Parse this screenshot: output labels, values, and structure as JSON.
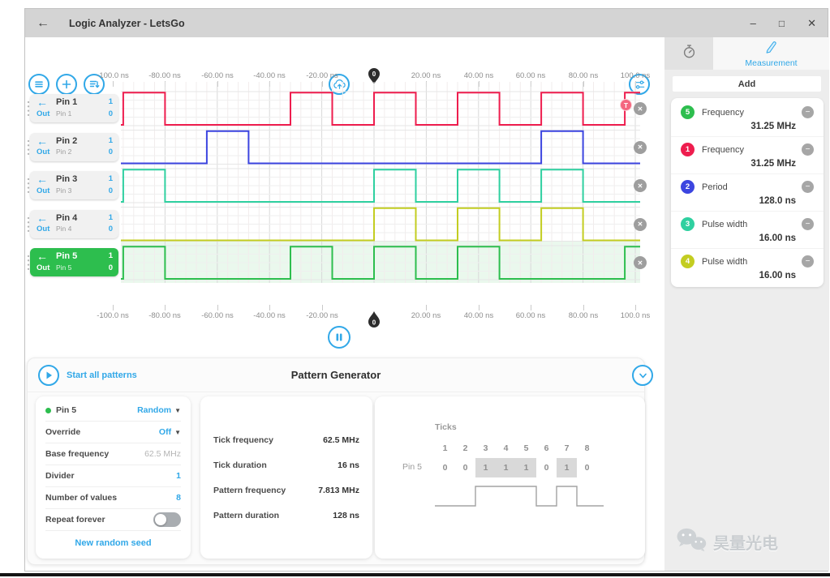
{
  "window": {
    "title": "Logic Analyzer - LetsGo",
    "back_icon": "←",
    "controls": {
      "minimize": "–",
      "maximize": "□",
      "close": "✕"
    }
  },
  "toolbar": {
    "buttons": [
      "menu",
      "add-channel",
      "sort-channels"
    ],
    "center_button": "cloud-upload",
    "right_button": "settings-sliders"
  },
  "timeline": {
    "unit": "ns",
    "marker_label": "0",
    "ticks": [
      {
        "t": -100,
        "label": "-100.0 ns"
      },
      {
        "t": -80,
        "label": "-80.00 ns"
      },
      {
        "t": -60,
        "label": "-60.00 ns"
      },
      {
        "t": -40,
        "label": "-40.00 ns"
      },
      {
        "t": -20,
        "label": "-20.00 ns"
      },
      {
        "t": 20,
        "label": "20.00 ns"
      },
      {
        "t": 40,
        "label": "40.00 ns"
      },
      {
        "t": 60,
        "label": "60.00 ns"
      },
      {
        "t": 80,
        "label": "80.00 ns"
      },
      {
        "t": 100,
        "label": "100.0 ns"
      }
    ]
  },
  "channels": [
    {
      "name": "Pin 1",
      "direction": "Out",
      "subtitle": "Pin 1",
      "high_label": "1",
      "low_label": "0",
      "color": "#ee1d4e",
      "selected": false,
      "trigger_badge": "T",
      "highs_ns": [
        [
          -96,
          -80
        ],
        [
          -32,
          -16
        ],
        [
          0,
          16
        ],
        [
          32,
          48
        ],
        [
          64,
          80
        ],
        [
          96,
          103
        ]
      ]
    },
    {
      "name": "Pin 2",
      "direction": "Out",
      "subtitle": "Pin 2",
      "high_label": "1",
      "low_label": "0",
      "color": "#3c45e0",
      "selected": false,
      "trigger_badge": "",
      "highs_ns": [
        [
          -64,
          -48
        ],
        [
          64,
          80
        ]
      ]
    },
    {
      "name": "Pin 3",
      "direction": "Out",
      "subtitle": "Pin 3",
      "high_label": "1",
      "low_label": "0",
      "color": "#2fd0a0",
      "selected": false,
      "trigger_badge": "",
      "highs_ns": [
        [
          -96,
          -80
        ],
        [
          0,
          16
        ],
        [
          32,
          48
        ],
        [
          64,
          80
        ]
      ]
    },
    {
      "name": "Pin 4",
      "direction": "Out",
      "subtitle": "Pin 4",
      "high_label": "1",
      "low_label": "0",
      "color": "#c3cd21",
      "selected": false,
      "trigger_badge": "",
      "highs_ns": [
        [
          0,
          16
        ],
        [
          32,
          48
        ],
        [
          64,
          80
        ]
      ]
    },
    {
      "name": "Pin 5",
      "direction": "Out",
      "subtitle": "Pin 5",
      "high_label": "1",
      "low_label": "0",
      "color": "#2dbe4e",
      "selected": true,
      "trigger_badge": "",
      "highs_ns": [
        [
          -96,
          -80
        ],
        [
          -32,
          -16
        ],
        [
          0,
          16
        ],
        [
          32,
          48
        ],
        [
          96,
          103
        ]
      ]
    }
  ],
  "measurement_panel": {
    "tabs": {
      "timing_icon": "stopwatch-icon",
      "measurement": "Measurement"
    },
    "add_button": "Add",
    "items": [
      {
        "badge": "5",
        "badge_color": "#2dbe4e",
        "label": "Frequency",
        "value": "31.25 MHz"
      },
      {
        "badge": "1",
        "badge_color": "#ee1d4e",
        "label": "Frequency",
        "value": "31.25 MHz"
      },
      {
        "badge": "2",
        "badge_color": "#3c45e0",
        "label": "Period",
        "value": "128.0 ns"
      },
      {
        "badge": "3",
        "badge_color": "#2fd0a0",
        "label": "Pulse width",
        "value": "16.00 ns"
      },
      {
        "badge": "4",
        "badge_color": "#c3cd21",
        "label": "Pulse width",
        "value": "16.00 ns"
      }
    ]
  },
  "pattern_generator": {
    "title": "Pattern Generator",
    "start_button": "Start all patterns",
    "settings": {
      "pin_name": "Pin 5",
      "mode": "Random",
      "rows": [
        {
          "label": "Override",
          "value": "Off",
          "type": "dropdown"
        },
        {
          "label": "Base frequency",
          "value": "62.5 MHz",
          "type": "muted"
        },
        {
          "label": "Divider",
          "value": "1",
          "type": "value"
        },
        {
          "label": "Number of values",
          "value": "8",
          "type": "value"
        },
        {
          "label": "Repeat forever",
          "value": "off",
          "type": "toggle"
        }
      ],
      "link": "New random seed"
    },
    "stats": [
      {
        "label": "Tick frequency",
        "value": "62.5 MHz"
      },
      {
        "label": "Tick duration",
        "value": "16 ns"
      },
      {
        "label": "Pattern frequency",
        "value": "7.813 MHz"
      },
      {
        "label": "Pattern duration",
        "value": "128 ns"
      }
    ],
    "ticks_table": {
      "title": "Ticks",
      "columns": [
        "1",
        "2",
        "3",
        "4",
        "5",
        "6",
        "7",
        "8"
      ],
      "row_label": "Pin 5",
      "values": [
        "0",
        "0",
        "1",
        "1",
        "1",
        "0",
        "1",
        "0"
      ]
    }
  },
  "watermark": {
    "text": "昊量光电"
  },
  "colors": {
    "accent": "#31a8e8"
  }
}
